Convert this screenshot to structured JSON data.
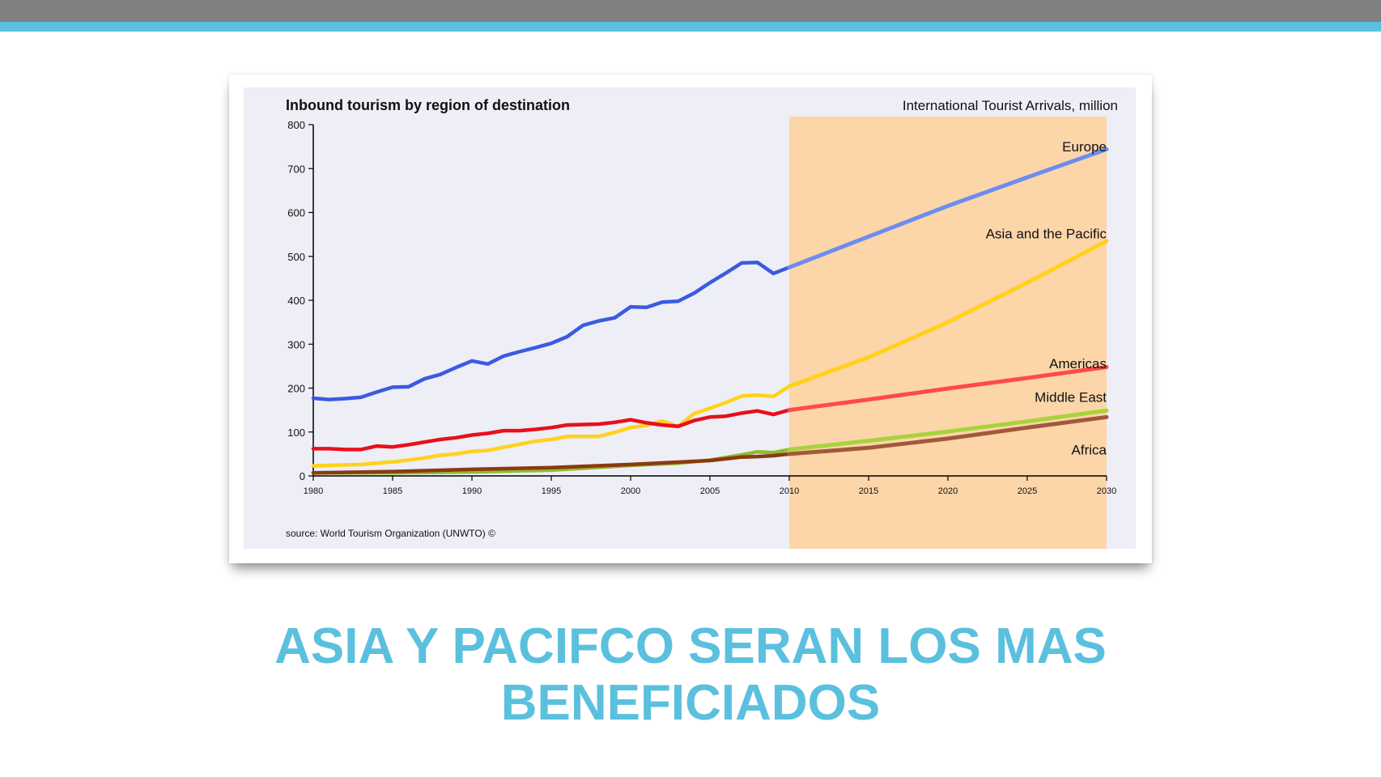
{
  "slide": {
    "title_line1": "ASIA Y PACIFCO SERAN LOS MAS",
    "title_line2": "BENEFICIADOS",
    "accent_color": "#5bc0de",
    "bar_color": "#808080"
  },
  "chart_data": {
    "type": "line",
    "title": "Inbound tourism by region of destination",
    "subtitle": "International Tourist Arrivals, million",
    "source": "source: World Tourism Organization (UNWTO) ©",
    "xlim": [
      1980,
      2030
    ],
    "ylim": [
      0,
      800
    ],
    "x_ticks": [
      1980,
      1985,
      1990,
      1995,
      2000,
      2005,
      2010,
      2015,
      2020,
      2025,
      2030
    ],
    "y_ticks": [
      0,
      100,
      200,
      300,
      400,
      500,
      600,
      700,
      800
    ],
    "grid": false,
    "background_color": "#eeeef7",
    "forecast": {
      "from": 2010,
      "to": 2030,
      "color": "#fcd5a9"
    },
    "series": [
      {
        "name": "Europe",
        "color": "#3a5be0",
        "forecast_color": "#6a8df0",
        "actual": {
          "x": [
            1980,
            1981,
            1982,
            1983,
            1984,
            1985,
            1986,
            1987,
            1988,
            1989,
            1990,
            1991,
            1992,
            1993,
            1994,
            1995,
            1996,
            1997,
            1998,
            1999,
            2000,
            2001,
            2002,
            2003,
            2004,
            2005,
            2006,
            2007,
            2008,
            2009,
            2010
          ],
          "y": [
            177,
            174,
            176,
            179,
            191,
            202,
            203,
            221,
            231,
            247,
            262,
            255,
            273,
            283,
            292,
            302,
            317,
            343,
            353,
            360,
            385,
            384,
            396,
            398,
            416,
            440,
            462,
            485,
            486,
            461,
            475
          ]
        },
        "projection": {
          "x": [
            2010,
            2015,
            2020,
            2025,
            2030
          ],
          "y": [
            475,
            545,
            615,
            680,
            744
          ]
        }
      },
      {
        "name": "Asia and the Pacific",
        "color": "#ffd21a",
        "forecast_color": "#ffd21a",
        "actual": {
          "x": [
            1980,
            1981,
            1982,
            1983,
            1984,
            1985,
            1986,
            1987,
            1988,
            1989,
            1990,
            1991,
            1992,
            1993,
            1994,
            1995,
            1996,
            1997,
            1998,
            1999,
            2000,
            2001,
            2002,
            2003,
            2004,
            2005,
            2006,
            2007,
            2008,
            2009,
            2010
          ],
          "y": [
            23,
            24,
            25,
            26,
            29,
            32,
            36,
            41,
            47,
            50,
            56,
            58,
            65,
            72,
            79,
            83,
            90,
            90,
            90,
            99,
            110,
            115,
            125,
            113,
            142,
            154,
            167,
            182,
            184,
            181,
            204
          ]
        },
        "projection": {
          "x": [
            2010,
            2015,
            2020,
            2025,
            2030
          ],
          "y": [
            204,
            270,
            350,
            440,
            535
          ]
        }
      },
      {
        "name": "Americas",
        "color": "#e8101a",
        "forecast_color": "#ff4a4a",
        "actual": {
          "x": [
            1980,
            1981,
            1982,
            1983,
            1984,
            1985,
            1986,
            1987,
            1988,
            1989,
            1990,
            1991,
            1992,
            1993,
            1994,
            1995,
            1996,
            1997,
            1998,
            1999,
            2000,
            2001,
            2002,
            2003,
            2004,
            2005,
            2006,
            2007,
            2008,
            2009,
            2010
          ],
          "y": [
            62,
            62,
            60,
            60,
            68,
            66,
            71,
            77,
            83,
            87,
            93,
            97,
            103,
            103,
            106,
            110,
            116,
            117,
            118,
            122,
            128,
            121,
            116,
            113,
            126,
            134,
            136,
            143,
            148,
            140,
            150
          ]
        },
        "projection": {
          "x": [
            2010,
            2015,
            2020,
            2025,
            2030
          ],
          "y": [
            150,
            174,
            199,
            223,
            248
          ]
        }
      },
      {
        "name": "Middle East",
        "color": "#8dbe2c",
        "forecast_color": "#a6d43a",
        "actual": {
          "x": [
            1980,
            1985,
            1990,
            1995,
            2000,
            2003,
            2005,
            2007,
            2008,
            2009,
            2010
          ],
          "y": [
            7,
            7,
            9,
            13,
            24,
            29,
            36,
            48,
            55,
            53,
            60
          ]
        },
        "projection": {
          "x": [
            2010,
            2015,
            2020,
            2025,
            2030
          ],
          "y": [
            60,
            80,
            101,
            124,
            149
          ]
        }
      },
      {
        "name": "Africa",
        "color": "#8b3a10",
        "forecast_color": "#a05a3a",
        "actual": {
          "x": [
            1980,
            1985,
            1990,
            1995,
            2000,
            2005,
            2007,
            2008,
            2009,
            2010
          ],
          "y": [
            7,
            10,
            15,
            19,
            26,
            35,
            43,
            44,
            46,
            50
          ]
        },
        "projection": {
          "x": [
            2010,
            2015,
            2020,
            2025,
            2030
          ],
          "y": [
            50,
            64,
            85,
            110,
            134
          ]
        }
      }
    ]
  }
}
